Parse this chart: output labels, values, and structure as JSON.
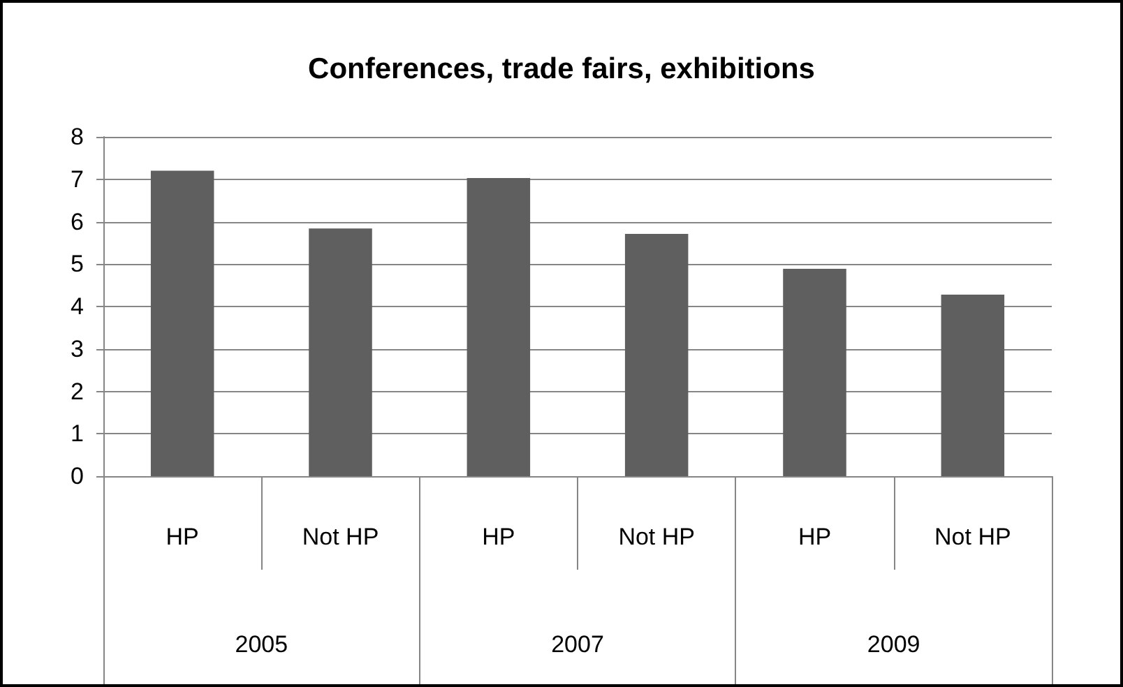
{
  "chart_data": {
    "type": "bar",
    "title": "Conferences, trade fairs, exhibitions",
    "categories": [
      "HP",
      "Not HP",
      "HP",
      "Not HP",
      "HP",
      "Not HP"
    ],
    "values": [
      7.2,
      5.84,
      7.03,
      5.71,
      4.89,
      4.28
    ],
    "color": "#5f5f5f",
    "ylim": [
      0,
      8
    ],
    "yticks": [
      0,
      1,
      2,
      3,
      4,
      5,
      6,
      7,
      8
    ],
    "grid": "y",
    "annotations": [
      "2005",
      "2007",
      "2009"
    ]
  }
}
